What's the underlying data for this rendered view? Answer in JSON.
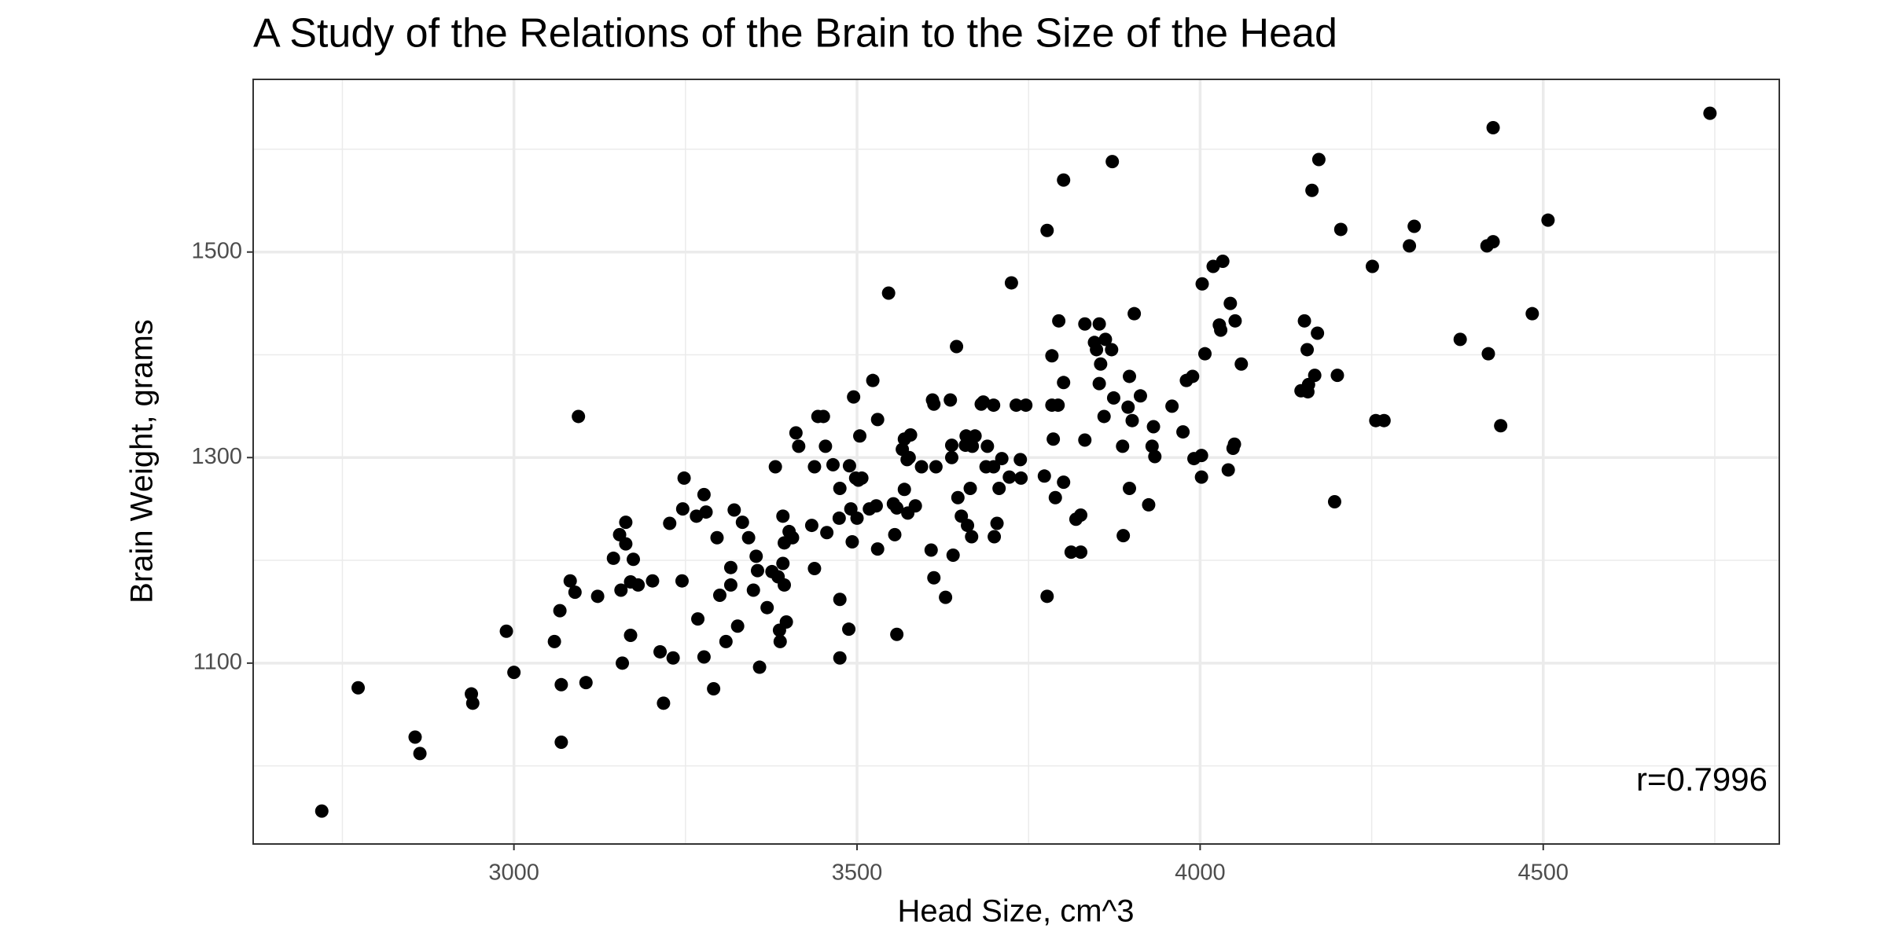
{
  "chart_data": {
    "type": "scatter",
    "title": "A Study of the Relations of the Brain to the Size of the Head",
    "x_label": "Head Size, cm^3",
    "y_label": "Brain Weight, grams",
    "annotation": "r=0.7996",
    "color": "#000000",
    "xlim": [
      2620,
      4844
    ],
    "ylim": [
      924,
      1668
    ],
    "xticks": [
      3000,
      3500,
      4000,
      4500
    ],
    "yticks": [
      1100,
      1300,
      1500
    ],
    "x_minor_ticks": [
      2750,
      3250,
      3750,
      4250,
      4750
    ],
    "y_minor_ticks": [
      1000,
      1200,
      1400,
      1600
    ],
    "grid": true,
    "x": [
      2720,
      2773,
      2856,
      2863,
      2938,
      2940,
      2989,
      3000,
      3059,
      3067,
      3069,
      3069,
      3082,
      3089,
      3094,
      3105,
      3122,
      3145,
      3154,
      3156,
      3158,
      3163,
      3163,
      3170,
      3174,
      3170,
      3181,
      3202,
      3213,
      3218,
      3227,
      3232,
      3245,
      3246,
      3248,
      3266,
      3268,
      3277,
      3277,
      3280,
      3291,
      3296,
      3300,
      3309,
      3316,
      3316,
      3321,
      3326,
      3333,
      3342,
      3349,
      3353,
      3355,
      3358,
      3369,
      3376,
      3381,
      3385,
      3387,
      3388,
      3392,
      3392,
      3394,
      3394,
      3397,
      3401,
      3406,
      3411,
      3415,
      3434,
      3438,
      3438,
      3443,
      3451,
      3454,
      3456,
      3465,
      3474,
      3475,
      3475,
      3475,
      3488,
      3489,
      3491,
      3493,
      3495,
      3498,
      3500,
      3502,
      3504,
      3507,
      3518,
      3523,
      3528,
      3530,
      3530,
      3546,
      3553,
      3555,
      3558,
      3558,
      3566,
      3569,
      3569,
      3573,
      3574,
      3576,
      3578,
      3585,
      3594,
      3608,
      3610,
      3612,
      3612,
      3615,
      3629,
      3636,
      3638,
      3638,
      3640,
      3645,
      3647,
      3652,
      3658,
      3659,
      3661,
      3665,
      3667,
      3668,
      3672,
      3681,
      3684,
      3688,
      3690,
      3699,
      3699,
      3700,
      3704,
      3707,
      3711,
      3722,
      3725,
      3732,
      3738,
      3739,
      3746,
      3773,
      3777,
      3777,
      3784,
      3784,
      3786,
      3789,
      3793,
      3794,
      3801,
      3801,
      3801,
      3812,
      3819,
      3826,
      3826,
      3832,
      3832,
      3846,
      3849,
      3853,
      3853,
      3855,
      3860,
      3862,
      3871,
      3872,
      3874,
      3887,
      3888,
      3895,
      3897,
      3897,
      3901,
      3904,
      3913,
      3925,
      3930,
      3932,
      3934,
      3959,
      3975,
      3980,
      3989,
      3991,
      4002,
      4002,
      4003,
      4007,
      4019,
      4028,
      4030,
      4033,
      4041,
      4044,
      4048,
      4050,
      4051,
      4060,
      4147,
      4157,
      4167,
      4152,
      4156,
      4158,
      4163,
      4171,
      4173,
      4196,
      4200,
      4205,
      4251,
      4256,
      4268,
      4305,
      4312,
      4379,
      4418,
      4420,
      4427,
      4427,
      4438,
      4484,
      4507,
      4743
    ],
    "y": [
      956,
      1076,
      1028,
      1012,
      1070,
      1061,
      1131,
      1091,
      1121,
      1151,
      1079,
      1023,
      1180,
      1169,
      1340,
      1081,
      1165,
      1202,
      1225,
      1171,
      1100,
      1237,
      1216,
      1179,
      1201,
      1127,
      1176,
      1180,
      1111,
      1061,
      1236,
      1105,
      1180,
      1250,
      1280,
      1243,
      1143,
      1264,
      1106,
      1247,
      1075,
      1222,
      1166,
      1121,
      1193,
      1176,
      1249,
      1136,
      1237,
      1222,
      1171,
      1204,
      1190,
      1096,
      1154,
      1189,
      1291,
      1184,
      1132,
      1121,
      1243,
      1197,
      1176,
      1217,
      1140,
      1228,
      1222,
      1324,
      1311,
      1234,
      1291,
      1192,
      1340,
      1340,
      1311,
      1227,
      1293,
      1241,
      1270,
      1162,
      1105,
      1133,
      1292,
      1250,
      1218,
      1359,
      1280,
      1241,
      1278,
      1321,
      1280,
      1250,
      1375,
      1253,
      1337,
      1211,
      1460,
      1255,
      1225,
      1128,
      1251,
      1308,
      1318,
      1269,
      1298,
      1246,
      1300,
      1322,
      1253,
      1291,
      1210,
      1356,
      1352,
      1183,
      1291,
      1164,
      1356,
      1312,
      1300,
      1205,
      1408,
      1261,
      1243,
      1312,
      1321,
      1234,
      1270,
      1223,
      1311,
      1321,
      1352,
      1354,
      1291,
      1311,
      1351,
      1291,
      1223,
      1236,
      1270,
      1299,
      1281,
      1470,
      1351,
      1298,
      1280,
      1351,
      1282,
      1165,
      1521,
      1351,
      1399,
      1318,
      1261,
      1351,
      1433,
      1373,
      1276,
      1570,
      1208,
      1240,
      1208,
      1244,
      1430,
      1317,
      1412,
      1405,
      1430,
      1372,
      1391,
      1340,
      1415,
      1405,
      1588,
      1358,
      1311,
      1224,
      1349,
      1270,
      1379,
      1336,
      1440,
      1360,
      1254,
      1311,
      1330,
      1301,
      1350,
      1325,
      1375,
      1379,
      1299,
      1281,
      1302,
      1469,
      1401,
      1486,
      1429,
      1424,
      1491,
      1288,
      1450,
      1309,
      1313,
      1433,
      1391,
      1365,
      1364,
      1380,
      1433,
      1405,
      1371,
      1560,
      1421,
      1590,
      1257,
      1380,
      1522,
      1486,
      1336,
      1336,
      1506,
      1525,
      1415,
      1506,
      1401,
      1510,
      1621,
      1331,
      1440,
      1531,
      1635
    ]
  }
}
